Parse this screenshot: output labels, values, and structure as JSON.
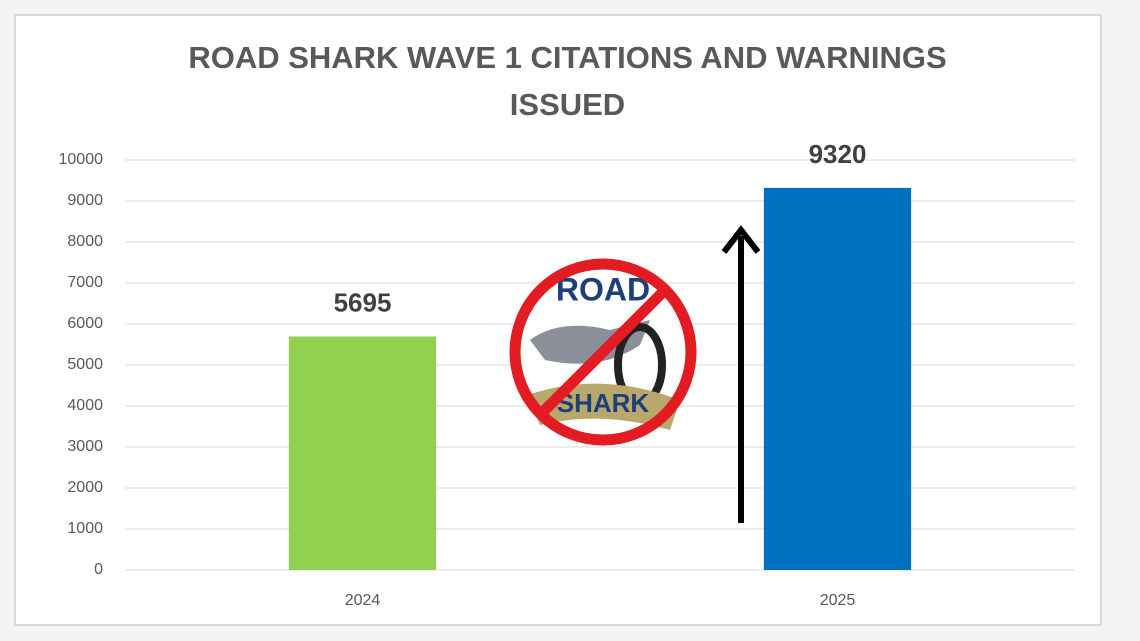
{
  "chart_data": {
    "type": "bar",
    "title": "ROAD SHARK WAVE 1 CITATIONS AND WARNINGS ISSUED",
    "categories": [
      "2024",
      "2025"
    ],
    "values": [
      5695,
      9320
    ],
    "colors": [
      "#92d050",
      "#0070c0"
    ],
    "ylim": [
      0,
      10000
    ],
    "yticks": [
      0,
      1000,
      2000,
      3000,
      4000,
      5000,
      6000,
      7000,
      8000,
      9000,
      10000
    ],
    "grid": true,
    "logo_text": [
      "ROAD",
      "SHARK"
    ]
  }
}
